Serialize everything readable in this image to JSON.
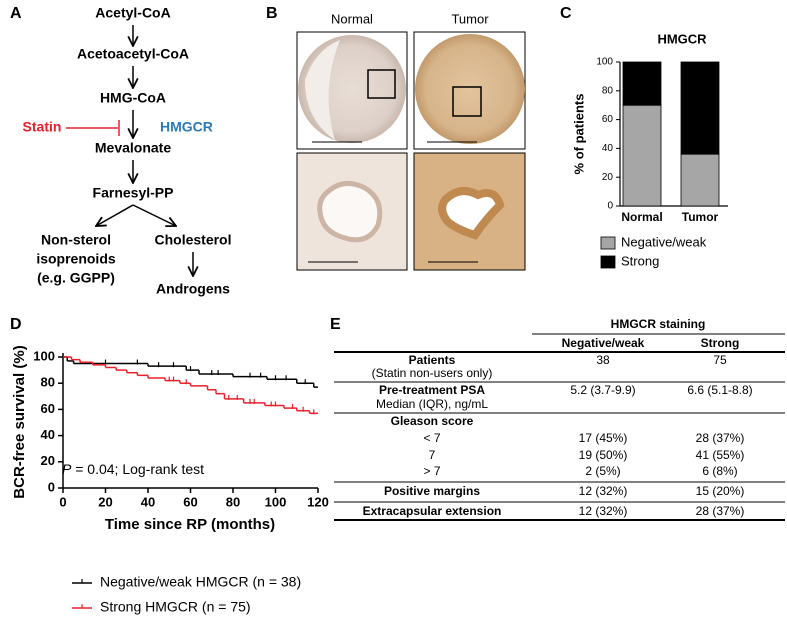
{
  "panel_labels": [
    "A",
    "B",
    "C",
    "D",
    "E"
  ],
  "pathway": {
    "nodes": [
      {
        "lines": [
          "Acetyl-CoA"
        ]
      },
      {
        "lines": [
          "Acetoacetyl-CoA"
        ]
      },
      {
        "lines": [
          "HMG-CoA"
        ]
      },
      {
        "lines": [
          "Mevalonate"
        ]
      },
      {
        "lines": [
          "Farnesyl-PP"
        ]
      },
      {
        "lines": [
          "Non-sterol",
          "isoprenoids",
          "(e.g. GGPP)"
        ]
      },
      {
        "lines": [
          "Cholesterol"
        ]
      },
      {
        "lines": [
          "Androgens"
        ]
      }
    ],
    "inhibitor": "Statin",
    "enzyme": "HMGCR"
  },
  "images": {
    "columns": [
      "Normal",
      "Tumor"
    ]
  },
  "chart_data": [
    {
      "type": "bar",
      "stacked": true,
      "title": "HMGCR",
      "y_label": "% of patients",
      "categories": [
        "Normal",
        "Tumor"
      ],
      "series": [
        {
          "name": "Negative/weak",
          "color": "#a6a6a6",
          "values": [
            70,
            36
          ]
        },
        {
          "name": "Strong",
          "color": "#000000",
          "values": [
            30,
            64
          ]
        }
      ],
      "ylim": [
        0,
        100
      ],
      "yticks": [
        0,
        20,
        40,
        60,
        80,
        100
      ]
    },
    {
      "type": "line",
      "step": true,
      "x_label": "Time since RP (months)",
      "y_label": "BCR-free survival (%)",
      "annotation": {
        "symbol": "P",
        "text": " = 0.04; Log-rank test"
      },
      "series": [
        {
          "name": "Negative/weak HMGCR (n = 38)",
          "color": "#000000",
          "x": [
            0,
            2,
            5,
            40,
            58,
            64,
            80,
            96,
            110,
            118,
            120
          ],
          "values": [
            100,
            97,
            95,
            93,
            90,
            87,
            85,
            83,
            80,
            77,
            77
          ],
          "censored": [
            20,
            35,
            45,
            52,
            60,
            70,
            73,
            88,
            93,
            100,
            105,
            114
          ]
        },
        {
          "name": "Strong HMGCR (n = 75)",
          "color": "#e8202a",
          "x": [
            0,
            4,
            8,
            14,
            20,
            25,
            30,
            35,
            40,
            48,
            55,
            60,
            68,
            72,
            76,
            85,
            95,
            104,
            110,
            116,
            120
          ],
          "values": [
            100,
            98,
            96,
            94,
            92,
            90,
            88,
            86,
            84,
            82,
            80,
            78,
            75,
            72,
            68,
            65,
            63,
            61,
            59,
            57,
            57
          ],
          "censored": [
            50,
            52,
            58,
            78,
            82,
            88,
            90,
            98,
            100,
            108,
            113,
            118
          ]
        }
      ],
      "xlim": [
        0,
        120
      ],
      "xticks": [
        0,
        20,
        40,
        60,
        80,
        100,
        120
      ],
      "ylim": [
        0,
        100
      ],
      "yticks": [
        0,
        20,
        40,
        60,
        80,
        100
      ]
    }
  ],
  "table": {
    "group_header": "HMGCR staining",
    "columns": [
      "Negative/weak",
      "Strong"
    ],
    "rows": [
      {
        "label": "Patients",
        "sublabel": "(Statin non-users only)",
        "cells": [
          38,
          75
        ]
      },
      {
        "label": "Pre-treatment PSA",
        "sublabel": "Median (IQR), ng/mL",
        "cells": [
          "5.2 (3.7-9.9)",
          "6.6 (5.1-8.8)"
        ]
      },
      {
        "label": "Gleason score"
      },
      {
        "label": "< 7",
        "cells": [
          "17 (45%)",
          "28 (37%)"
        ]
      },
      {
        "label": "7",
        "cells": [
          "19 (50%)",
          "41 (55%)"
        ]
      },
      {
        "label": "> 7",
        "cells": [
          "2 (5%)",
          "6 (8%)"
        ]
      },
      {
        "label": "Positive margins",
        "cells": [
          "12 (32%)",
          "15 (20%)"
        ]
      },
      {
        "label": "Extracapsular extension",
        "cells": [
          "12 (32%)",
          "28 (37%)"
        ]
      }
    ]
  }
}
